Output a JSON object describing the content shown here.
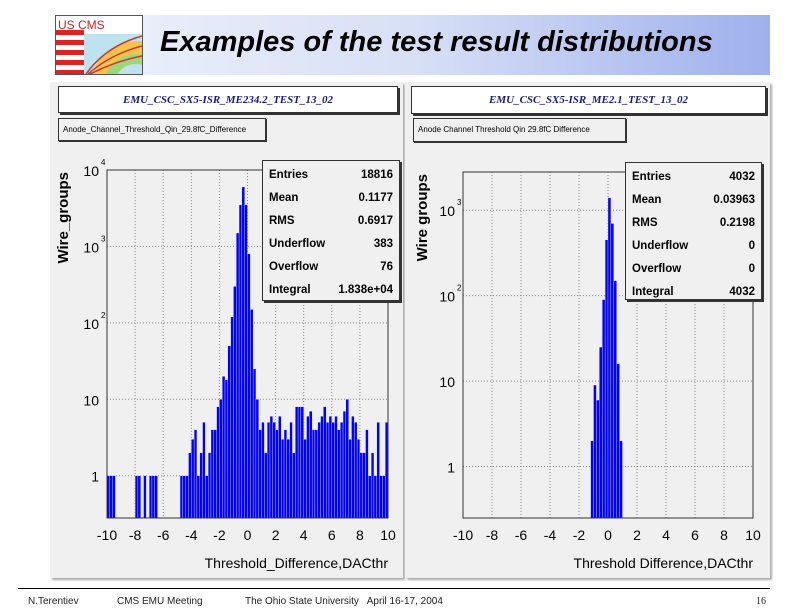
{
  "header": {
    "title": "Examples of the test result distributions",
    "logo_text": "US CMS"
  },
  "plots": [
    {
      "canvas_title": "EMU_CSC_SX5-ISR_ME234.2_TEST_13_02",
      "hist_title": "Anode_Channel_Threshold_Qin_29.8fC_Difference",
      "stats": [
        {
          "label": "Entries",
          "value": "18816"
        },
        {
          "label": "Mean",
          "value": "0.1177"
        },
        {
          "label": "RMS",
          "value": "0.6917"
        },
        {
          "label": "Underflow",
          "value": "383"
        },
        {
          "label": "Overflow",
          "value": "76"
        },
        {
          "label": "Integral",
          "value": "1.838e+04"
        }
      ]
    },
    {
      "canvas_title": "EMU_CSC_SX5-ISR_ME2.1_TEST_13_02",
      "hist_title": "Anode Channel Threshold Qin 29.8fC Difference",
      "stats": [
        {
          "label": "Entries",
          "value": "4032"
        },
        {
          "label": "Mean",
          "value": "0.03963"
        },
        {
          "label": "RMS",
          "value": "0.2198"
        },
        {
          "label": "Underflow",
          "value": "0"
        },
        {
          "label": "Overflow",
          "value": "0"
        },
        {
          "label": "Integral",
          "value": "4032"
        }
      ]
    }
  ],
  "chart_data": [
    {
      "type": "bar",
      "xlabel": "Threshold_Difference,DACthr",
      "ylabel": "Wire_groups",
      "xlim": [
        -10,
        10
      ],
      "ylim": [
        0.28,
        10000
      ],
      "yscale": "log",
      "grid": true,
      "bar_color": "#0000ff",
      "xticks": [
        "-10",
        "-8",
        "-6",
        "-4",
        "-2",
        "0",
        "2",
        "4",
        "6",
        "8",
        "10"
      ],
      "yticks": [
        {
          "base": "1",
          "exp": ""
        },
        {
          "base": "10",
          "exp": ""
        },
        {
          "base": "10",
          "exp": "2"
        },
        {
          "base": "10",
          "exp": "3"
        },
        {
          "base": "10",
          "exp": "4"
        }
      ],
      "bin_low": -10,
      "bin_width": 0.2,
      "values": [
        1,
        1,
        1,
        0,
        0,
        0,
        0,
        0,
        0,
        0,
        1,
        1,
        0,
        1,
        0,
        1,
        1,
        1,
        0,
        0,
        0,
        0,
        0,
        0,
        0,
        0,
        1,
        1,
        1,
        2,
        3,
        4,
        1,
        2,
        5,
        1,
        2,
        4,
        4,
        8,
        10,
        20,
        18,
        50,
        120,
        300,
        1500,
        3500,
        6000,
        3500,
        800,
        150,
        25,
        10,
        4,
        5,
        2,
        5,
        6,
        5,
        4,
        6,
        3,
        4,
        3,
        5,
        2,
        8,
        8,
        8,
        3,
        6,
        7,
        4,
        4,
        5,
        6,
        8,
        5,
        6,
        5,
        6,
        4,
        5,
        7,
        10,
        3,
        6,
        5,
        3,
        2,
        2,
        4,
        1,
        2,
        1,
        5,
        1,
        1,
        5
      ]
    },
    {
      "type": "bar",
      "xlabel": "Threshold Difference,DACthr",
      "ylabel": "Wire groups",
      "xlim": [
        -10,
        10
      ],
      "ylim": [
        0.25,
        2800
      ],
      "yscale": "log",
      "grid": true,
      "bar_color": "#0000ff",
      "xticks": [
        "-10",
        "-8",
        "-6",
        "-4",
        "-2",
        "0",
        "2",
        "4",
        "6",
        "8",
        "10"
      ],
      "yticks": [
        {
          "base": "1",
          "exp": ""
        },
        {
          "base": "10",
          "exp": ""
        },
        {
          "base": "10",
          "exp": "2"
        },
        {
          "base": "10",
          "exp": "3"
        }
      ],
      "bin_low": -1.2,
      "bin_width": 0.2,
      "values": [
        2,
        9,
        6,
        25,
        90,
        450,
        1400,
        700,
        150,
        16,
        2
      ]
    }
  ],
  "footer": {
    "author": "N.Terentiev",
    "meeting": "CMS EMU Meeting",
    "venue": "The Ohio State University   April 16-17, 2004",
    "page": "16"
  }
}
